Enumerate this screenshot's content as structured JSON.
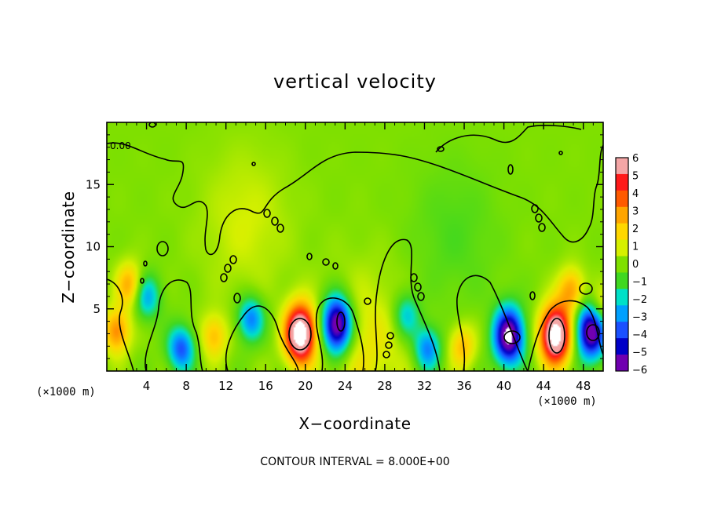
{
  "chart_data": {
    "type": "heatmap",
    "title": "vertical velocity",
    "xlabel": "X−coordinate",
    "ylabel": "Z−coordinate",
    "x_unit_left": "(×1000 m)",
    "x_unit_right": "(×1000 m)",
    "xlim": [
      0,
      50
    ],
    "ylim": [
      0,
      20
    ],
    "x_ticks": [
      4,
      8,
      12,
      16,
      20,
      24,
      28,
      32,
      36,
      40,
      44,
      48
    ],
    "x_tick_labels": [
      "4",
      "8",
      "12",
      "16",
      "20",
      "24",
      "28",
      "32",
      "36",
      "40",
      "44",
      "48"
    ],
    "y_ticks": [
      5,
      10,
      15
    ],
    "y_tick_labels": [
      "5",
      "10",
      "15"
    ],
    "colorbar": {
      "levels": [
        6,
        5,
        4,
        3,
        2,
        1,
        0,
        -1,
        -2,
        -3,
        -4,
        -5,
        -6
      ],
      "labels": [
        "6",
        "5",
        "4",
        "3",
        "2",
        "1",
        "0",
        "−1",
        "−2",
        "−3",
        "−4",
        "−5",
        "−6"
      ],
      "colors": [
        "#f4a6a6",
        "#ff1a1a",
        "#ff5a00",
        "#ffa500",
        "#ffd700",
        "#d6f000",
        "#7fe000",
        "#40d820",
        "#00e0c8",
        "#00a0ff",
        "#1a50ff",
        "#0000c8",
        "#7000b0"
      ]
    },
    "contour_labels": [
      "0.00"
    ],
    "contour_interval_text": "CONTOUR INTERVAL = 8.000E+00",
    "features": [
      {
        "x": 19.5,
        "z": 3.0,
        "peak": 8.5
      },
      {
        "x": 45.2,
        "z": 2.9,
        "peak": 8.5
      },
      {
        "x": 1.0,
        "z": 3.2,
        "peak": 3.5
      },
      {
        "x": 2.3,
        "z": 6.9,
        "peak": 3.0
      },
      {
        "x": 10.8,
        "z": 2.8,
        "peak": 2.5
      },
      {
        "x": 46.8,
        "z": 6.5,
        "peak": 3.0
      },
      {
        "x": 49.7,
        "z": 5.0,
        "peak": 2.5
      },
      {
        "x": 35.8,
        "z": 2.0,
        "peak": 2.5
      },
      {
        "x": 23.2,
        "z": 3.7,
        "peak": -7.5
      },
      {
        "x": 40.5,
        "z": 2.8,
        "peak": -7.0
      },
      {
        "x": 48.8,
        "z": 3.3,
        "peak": -7.0
      },
      {
        "x": 7.5,
        "z": 1.8,
        "peak": -4.0
      },
      {
        "x": 14.5,
        "z": 4.2,
        "peak": -3.5
      },
      {
        "x": 32.3,
        "z": 1.8,
        "peak": -3.5
      },
      {
        "x": 30.2,
        "z": 4.5,
        "peak": -2.5
      },
      {
        "x": 4.0,
        "z": 6.0,
        "peak": -3.0
      },
      {
        "x": 26.0,
        "z": 2.0,
        "peak": 1.5
      },
      {
        "x": 14.0,
        "z": 12.0,
        "peak": 1.0
      },
      {
        "x": 35.0,
        "z": 11.0,
        "peak": -0.8
      }
    ]
  }
}
